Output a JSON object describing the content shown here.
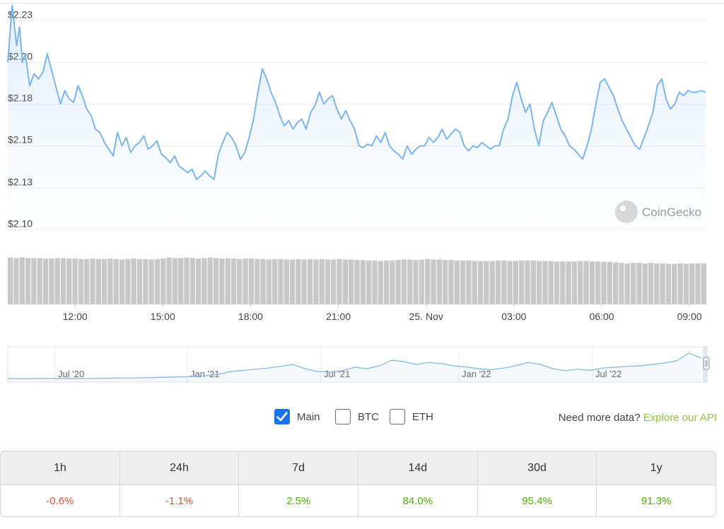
{
  "chart_data": {
    "type": "line",
    "title": "",
    "y_ticks": [
      "$2.23",
      "$2.20",
      "$2.18",
      "$2.15",
      "$2.13",
      "$2.10"
    ],
    "y_tick_values": [
      2.225,
      2.2,
      2.175,
      2.15,
      2.125,
      2.1
    ],
    "ylim": [
      2.1,
      2.235
    ],
    "x_ticks": [
      "12:00",
      "15:00",
      "18:00",
      "21:00",
      "25. Nov",
      "03:00",
      "06:00",
      "09:00"
    ],
    "x_tick_hours": [
      12,
      15,
      18,
      21,
      24,
      27,
      30,
      33
    ],
    "xlim_hours": [
      9.7,
      33.6
    ],
    "grid": true,
    "price_series": {
      "name": "Price",
      "color": "#7cb5ec",
      "x_hours": [
        9.7,
        9.85,
        10.0,
        10.1,
        10.2,
        10.3,
        10.45,
        10.6,
        10.75,
        10.9,
        11.05,
        11.2,
        11.35,
        11.5,
        11.65,
        11.8,
        11.95,
        12.1,
        12.25,
        12.4,
        12.55,
        12.7,
        12.85,
        13.0,
        13.15,
        13.3,
        13.45,
        13.6,
        13.75,
        13.9,
        14.05,
        14.2,
        14.35,
        14.5,
        14.65,
        14.8,
        14.95,
        15.1,
        15.25,
        15.4,
        15.55,
        15.7,
        15.85,
        16.0,
        16.15,
        16.3,
        16.45,
        16.6,
        16.75,
        16.9,
        17.05,
        17.2,
        17.35,
        17.5,
        17.65,
        17.8,
        17.95,
        18.1,
        18.25,
        18.4,
        18.55,
        18.7,
        18.85,
        19.0,
        19.15,
        19.3,
        19.45,
        19.6,
        19.75,
        19.9,
        20.05,
        20.2,
        20.35,
        20.5,
        20.65,
        20.8,
        20.95,
        21.1,
        21.25,
        21.4,
        21.55,
        21.7,
        21.85,
        22.0,
        22.15,
        22.3,
        22.45,
        22.6,
        22.75,
        22.9,
        23.05,
        23.2,
        23.35,
        23.5,
        23.65,
        23.8,
        23.95,
        24.1,
        24.25,
        24.4,
        24.55,
        24.7,
        24.85,
        25.0,
        25.15,
        25.3,
        25.45,
        25.6,
        25.75,
        25.9,
        26.05,
        26.2,
        26.35,
        26.5,
        26.65,
        26.8,
        26.95,
        27.1,
        27.25,
        27.4,
        27.55,
        27.7,
        27.85,
        28.0,
        28.15,
        28.3,
        28.45,
        28.6,
        28.75,
        28.9,
        29.05,
        29.2,
        29.35,
        29.5,
        29.65,
        29.8,
        29.95,
        30.1,
        30.25,
        30.4,
        30.55,
        30.7,
        30.85,
        31.0,
        31.15,
        31.3,
        31.45,
        31.6,
        31.75,
        31.9,
        32.05,
        32.2,
        32.35,
        32.5,
        32.65,
        32.8,
        32.95,
        33.1,
        33.25,
        33.4,
        33.55
      ],
      "values": [
        2.2,
        2.234,
        2.21,
        2.221,
        2.2,
        2.205,
        2.186,
        2.193,
        2.19,
        2.194,
        2.205,
        2.195,
        2.185,
        2.175,
        2.183,
        2.178,
        2.176,
        2.186,
        2.18,
        2.172,
        2.168,
        2.16,
        2.158,
        2.152,
        2.148,
        2.144,
        2.158,
        2.15,
        2.155,
        2.146,
        2.15,
        2.152,
        2.156,
        2.148,
        2.15,
        2.153,
        2.145,
        2.143,
        2.14,
        2.144,
        2.138,
        2.136,
        2.134,
        2.136,
        2.13,
        2.132,
        2.135,
        2.132,
        2.13,
        2.145,
        2.152,
        2.158,
        2.155,
        2.15,
        2.142,
        2.146,
        2.155,
        2.166,
        2.182,
        2.196,
        2.19,
        2.182,
        2.176,
        2.168,
        2.162,
        2.165,
        2.16,
        2.164,
        2.166,
        2.16,
        2.17,
        2.174,
        2.182,
        2.175,
        2.178,
        2.18,
        2.172,
        2.166,
        2.171,
        2.165,
        2.16,
        2.15,
        2.149,
        2.151,
        2.15,
        2.156,
        2.152,
        2.158,
        2.15,
        2.147,
        2.145,
        2.142,
        2.15,
        2.145,
        2.148,
        2.15,
        2.15,
        2.155,
        2.152,
        2.155,
        2.16,
        2.154,
        2.157,
        2.16,
        2.158,
        2.15,
        2.147,
        2.15,
        2.149,
        2.152,
        2.15,
        2.148,
        2.15,
        2.15,
        2.16,
        2.166,
        2.18,
        2.188,
        2.178,
        2.17,
        2.175,
        2.16,
        2.15,
        2.165,
        2.17,
        2.176,
        2.168,
        2.16,
        2.156,
        2.15,
        2.148,
        2.145,
        2.142,
        2.15,
        2.16,
        2.175,
        2.188,
        2.19,
        2.185,
        2.18,
        2.172,
        2.165,
        2.16,
        2.155,
        2.15,
        2.148,
        2.155,
        2.162,
        2.17,
        2.186,
        2.19,
        2.178,
        2.172,
        2.175,
        2.182,
        2.18,
        2.183,
        2.182,
        2.182,
        2.183,
        2.182
      ]
    },
    "volume_series": {
      "name": "Volume",
      "color": "#c8c8c8",
      "relative_levels": [
        0.96,
        0.95,
        0.96,
        0.95,
        0.95,
        0.95,
        0.94,
        0.94,
        0.95,
        0.95,
        0.94,
        0.94,
        0.93,
        0.93,
        0.94,
        0.93,
        0.93,
        0.94,
        0.93,
        0.92,
        0.93,
        0.94,
        0.93,
        0.93,
        0.92,
        0.93,
        0.94,
        0.96,
        0.95,
        0.95,
        0.96,
        0.95,
        0.94,
        0.95,
        0.96,
        0.95,
        0.94,
        0.95,
        0.94,
        0.93,
        0.94,
        0.94,
        0.93,
        0.93,
        0.92,
        0.93,
        0.93,
        0.92,
        0.92,
        0.93,
        0.92,
        0.93,
        0.92,
        0.93,
        0.92,
        0.92,
        0.93,
        0.92,
        0.92,
        0.91,
        0.91,
        0.9,
        0.9,
        0.89,
        0.9,
        0.9,
        0.91,
        0.92,
        0.92,
        0.91,
        0.92,
        0.93,
        0.92,
        0.92,
        0.91,
        0.91,
        0.9,
        0.9,
        0.9,
        0.89,
        0.89,
        0.89,
        0.89,
        0.9,
        0.9,
        0.89,
        0.89,
        0.9,
        0.9,
        0.9,
        0.89,
        0.89,
        0.89,
        0.88,
        0.88,
        0.88,
        0.88,
        0.89,
        0.89,
        0.88,
        0.88,
        0.87,
        0.87,
        0.86,
        0.85,
        0.84,
        0.85,
        0.85,
        0.84,
        0.85,
        0.84,
        0.84,
        0.83,
        0.83,
        0.84,
        0.83,
        0.84,
        0.84,
        0.84
      ]
    },
    "navigator": {
      "x_ticks": [
        "Jul '20",
        "Jan '21",
        "Jul '21",
        "Jan '22",
        "Jul '22"
      ],
      "values": [
        0.05,
        0.05,
        0.05,
        0.06,
        0.05,
        0.06,
        0.05,
        0.06,
        0.06,
        0.07,
        0.07,
        0.08,
        0.09,
        0.1,
        0.11,
        0.12,
        0.15,
        0.2,
        0.3,
        0.34,
        0.38,
        0.42,
        0.48,
        0.55,
        0.4,
        0.3,
        0.28,
        0.33,
        0.45,
        0.4,
        0.5,
        0.7,
        0.65,
        0.55,
        0.62,
        0.58,
        0.5,
        0.46,
        0.4,
        0.36,
        0.42,
        0.5,
        0.62,
        0.55,
        0.4,
        0.33,
        0.38,
        0.34,
        0.42,
        0.45,
        0.48,
        0.5,
        0.55,
        0.6,
        0.68,
        0.95,
        0.78
      ]
    },
    "watermark": "CoinGecko"
  },
  "controls": {
    "main_label": "Main",
    "btc_label": "BTC",
    "eth_label": "ETH",
    "need_more": "Need more data?",
    "api_link": "Explore our API"
  },
  "performance_table": {
    "headers": [
      "1h",
      "24h",
      "7d",
      "14d",
      "30d",
      "1y"
    ],
    "values": [
      "-0.6%",
      "-1.1%",
      "2.5%",
      "84.0%",
      "95.4%",
      "91.3%"
    ]
  },
  "colors": {
    "line": "#7cb5ec",
    "negative": "#e15241",
    "positive": "#4eaf0a",
    "checkbox": "#1a73e8",
    "link": "#8dc63f"
  }
}
